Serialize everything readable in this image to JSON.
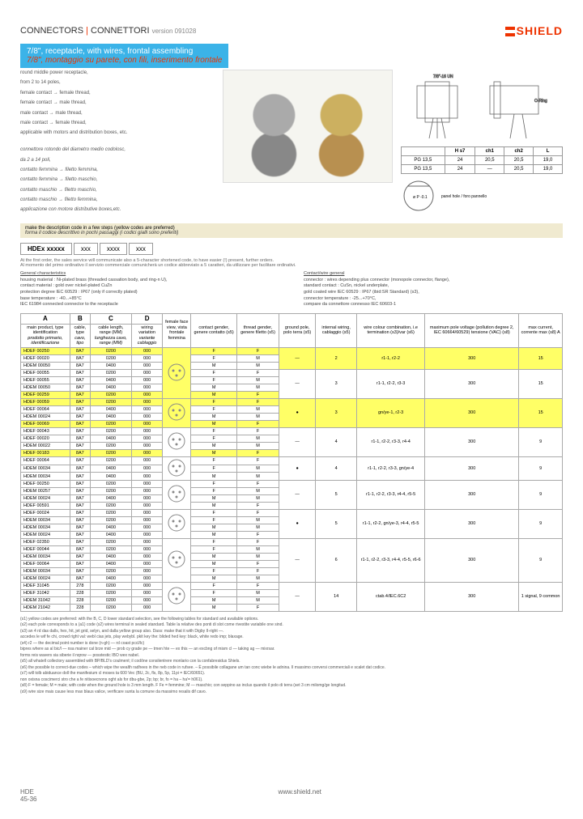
{
  "header": {
    "cat": "CONNECTORS",
    "cat_it": "CONNETTORI",
    "version": "version 091028",
    "brand": "SHIELD"
  },
  "title": {
    "en": "7/8\", receptacle, with wires, frontal assembling",
    "it": "7/8\", montaggio su parete, con fili, inserimento frontale"
  },
  "desc": {
    "l1": "round middle power receptacle,",
    "l2": "from 2 to 14 poles,",
    "l3": "female contact → female thread,",
    "l4": "female contact → male thread,",
    "l5": "male contact → male thread,",
    "l6": "male contact → female thread,",
    "l7": "applicable with motors and distribution boxes, etc.",
    "i1": "connettore rotondo del diametro medio codolosc,",
    "i2": "da 2 a 14 poli,",
    "i3": "contatto femmina → filetto femmina,",
    "i4": "contatto femmina → filetto maschio,",
    "i5": "contatto maschio → filetto maschio,",
    "i6": "contatto maschio → filetto femmina,",
    "i7": "applicazione con motore distributive boxes,etc."
  },
  "codestrip": {
    "en": "make the description code in a few steps (yellow codes are preferred)",
    "it": "forma il codice descrittivo in pochi passaggi (i codici gialli sono preferiti)",
    "note": "At the first order, the sales service will communicate also a 5-character shortened code, to have easier (!) present, further orders.",
    "note_it": "Al momento del primo ordinativo il servizio commerciale comunicherà un codice abbreviato a 5 caratteri, da utilizzare per facilitare ordinativi."
  },
  "codebox": {
    "a": "HDEx xxxxx",
    "b": "xxx",
    "c": "xxxx",
    "d": "xxx",
    "la": "A",
    "lb": "B",
    "lc": "C",
    "ld": "D"
  },
  "specs": {
    "left_u": "General characteristics",
    "l1": "housing material : Ni-plated brass (threaded cassation body, and ring-n U),",
    "l2": "contact material : gold over nickel-plated CuZn",
    "l3": "protection degree IEC 60529 : IP67 (only if correctly plated)",
    "l4": "base temperature : -40...+85°C",
    "l5": "IEC 61984 connected connector to the receptacle",
    "right_u": "Contact/wire general",
    "r1": "connector : wires depending plus connector (monopole connector, flange),",
    "r2": "standard contact : CuSn, nickel underplate,",
    "r3": "gold coated wire IEC 60529 : IP67 (ibid:SR Standard) (s3),",
    "r4": "connector temperature : -25...+70°C,",
    "r5": "compare da connettore connesso IEC 60603-1"
  },
  "dims": {
    "hdr": [
      "",
      "H s7",
      "ch1",
      "ch2",
      "L"
    ],
    "r1": [
      "PG 13,5",
      "24",
      "20,5",
      "20,5",
      "19,0"
    ],
    "r2": [
      "PG 13,5",
      "24",
      "—",
      "20,5",
      "19,0"
    ]
  },
  "pin_note": "panel hole / foro pannello",
  "cols": {
    "a": "A",
    "b": "B",
    "c": "C",
    "d": "D",
    "a2": "main product, type identification",
    "a2it": "prodotto primario, identificazione",
    "b2": "cable, type",
    "b2it": "cavo, tipo",
    "c2": "cable length, range (MM)",
    "c2it": "lunghezza cavo, range (MM)",
    "d2": "wiring variation",
    "d2it": "variante cablaggio",
    "e": "female face view, vista frontale femmina",
    "f": "contact gender, genere contatto (s5)",
    "g": "thread gender, genere filetto (s5)",
    "h": "ground pole, polo terra (s5)",
    "i": "internal wiring, cablaggio (s5)",
    "j": "wire colour combination, i.e termination (s3)/var (s6)",
    "k": "maximum pole voltage (pollution degree 2, IEC 60664/60529) tensione (VAC) (s8)",
    "l": "max current, corrente max (s8) A"
  },
  "rows": [
    {
      "hl": true,
      "a": "HDEF 00250",
      "b": "8A7",
      "c": "0200",
      "d": "000",
      "pin": "2",
      "f": "F",
      "g": "F",
      "h": "—",
      "i": "2",
      "j": "r1-1, r2-2",
      "k": "300",
      "l": "15"
    },
    {
      "a": "HDEF 00020",
      "b": "8A7",
      "c": "0200",
      "d": "000",
      "f": "F",
      "g": "M"
    },
    {
      "a": "HDEM 00050",
      "b": "8A7",
      "c": "0400",
      "d": "000",
      "f": "M",
      "g": "M"
    },
    {
      "a": "HDEF 00055",
      "b": "8A7",
      "c": "0200",
      "d": "000",
      "f": "F",
      "g": "F",
      "h": "—",
      "i": "3",
      "j": "r1-1, r2-2, r3-3",
      "k": "300",
      "l": "15"
    },
    {
      "a": "HDEF 00055",
      "b": "8A7",
      "c": "0400",
      "d": "000",
      "f": "F",
      "g": "M"
    },
    {
      "a": "HDEM 00050",
      "b": "8A7",
      "c": "0400",
      "d": "000",
      "f": "M",
      "g": "M"
    },
    {
      "hl": true,
      "a": "HDEF 00259",
      "b": "8A7",
      "c": "0200",
      "d": "000",
      "f": "M",
      "g": "F"
    },
    {
      "hl": true,
      "a": "HDEF 00059",
      "b": "8A7",
      "c": "0200",
      "d": "000",
      "pin": "3",
      "f": "F",
      "g": "F",
      "h": "●",
      "i": "3",
      "j": "gn/ye-1, r2-3",
      "k": "300",
      "l": "15"
    },
    {
      "a": "HDEF 00064",
      "b": "8A7",
      "c": "0400",
      "d": "000",
      "f": "F",
      "g": "M"
    },
    {
      "a": "HDEM 00024",
      "b": "8A7",
      "c": "0400",
      "d": "000",
      "f": "M",
      "g": "M"
    },
    {
      "hl": true,
      "a": "HDEF 00069",
      "b": "8A7",
      "c": "0200",
      "d": "000",
      "f": "M",
      "g": "F"
    },
    {
      "a": "HDEF 00043",
      "b": "8A7",
      "c": "0200",
      "d": "000",
      "pin": "4a",
      "f": "F",
      "g": "F",
      "h": "—",
      "i": "4",
      "j": "r1-1, r2-2, r3-3, r4-4",
      "k": "300",
      "l": "9"
    },
    {
      "a": "HDEF 00020",
      "b": "8A7",
      "c": "0400",
      "d": "000",
      "f": "F",
      "g": "M"
    },
    {
      "a": "HDEM 00022",
      "b": "8A7",
      "c": "0200",
      "d": "000",
      "f": "M",
      "g": "M"
    },
    {
      "hl": true,
      "a": "HDEF 00183",
      "b": "8A7",
      "c": "0200",
      "d": "000",
      "f": "M",
      "g": "F"
    },
    {
      "a": "HDEF 00064",
      "b": "8A7",
      "c": "0200",
      "d": "000",
      "pin": "4b",
      "f": "F",
      "g": "F",
      "h": "●",
      "i": "4",
      "j": "r1-1, r2-2, r3-3, gn/ye-4",
      "k": "300",
      "l": "9"
    },
    {
      "a": "HDEM 00034",
      "b": "8A7",
      "c": "0400",
      "d": "000",
      "f": "F",
      "g": "M"
    },
    {
      "a": "HDEM 00034",
      "b": "8A7",
      "c": "0400",
      "d": "000",
      "f": "M",
      "g": "M"
    },
    {
      "a": "HDEF 00250",
      "b": "8A7",
      "c": "0200",
      "d": "000",
      "pin": "5a",
      "f": "F",
      "g": "F",
      "h": "—",
      "i": "5",
      "j": "r1-1, r2-2, r3-3, r4-4, r5-5",
      "k": "300",
      "l": "9"
    },
    {
      "a": "HDEM 00257",
      "b": "8A7",
      "c": "0200",
      "d": "000",
      "f": "F",
      "g": "M"
    },
    {
      "a": "HDEM 00024",
      "b": "8A7",
      "c": "0400",
      "d": "000",
      "f": "M",
      "g": "M"
    },
    {
      "a": "HDEF 00591",
      "b": "8A7",
      "c": "0200",
      "d": "000",
      "f": "M",
      "g": "F"
    },
    {
      "a": "HDEF 00024",
      "b": "8A7",
      "c": "0200",
      "d": "000",
      "pin": "5b",
      "f": "F",
      "g": "F",
      "h": "●",
      "i": "5",
      "j": "r1-1, r2-2, gn/ye-3, r4-4, r5-5",
      "k": "300",
      "l": "9"
    },
    {
      "a": "HDEM 00034",
      "b": "8A7",
      "c": "0200",
      "d": "000",
      "f": "F",
      "g": "M"
    },
    {
      "a": "HDEM 00034",
      "b": "8A7",
      "c": "0400",
      "d": "000",
      "f": "M",
      "g": "M"
    },
    {
      "a": "HDEM 00024",
      "b": "8A7",
      "c": "0400",
      "d": "000",
      "f": "M",
      "g": "F"
    },
    {
      "a": "HDEF 02350",
      "b": "8A7",
      "c": "0200",
      "d": "000",
      "pin": "6",
      "f": "F",
      "g": "F",
      "h": "—",
      "i": "6",
      "j": "r1-1, r2-2, r3-3, r4-4, r5-5, r6-6",
      "k": "300",
      "l": "9"
    },
    {
      "a": "HDEF 00044",
      "b": "8A7",
      "c": "0200",
      "d": "000",
      "f": "F",
      "g": "M"
    },
    {
      "a": "HDEM 00034",
      "b": "8A7",
      "c": "0400",
      "d": "000",
      "f": "M",
      "g": "M"
    },
    {
      "a": "HDEF 00064",
      "b": "8A7",
      "c": "0400",
      "d": "000",
      "f": "M",
      "g": "F"
    },
    {
      "a": "HDEM 00034",
      "b": "8A7",
      "c": "0200",
      "d": "000",
      "f": "F",
      "g": "F"
    },
    {
      "a": "HDEM 00024",
      "b": "8A7",
      "c": "0400",
      "d": "000",
      "f": "M",
      "g": "M"
    },
    {
      "a": "HDEF 31045",
      "b": "278",
      "c": "0200",
      "d": "000",
      "pin": "14",
      "f": "F",
      "g": "F",
      "h": "—",
      "i": "14",
      "j": "ctab.4/IEC.6C2",
      "k": "300",
      "l": "1 signal, 9 common"
    },
    {
      "a": "HDEF 31042",
      "b": "228",
      "c": "0200",
      "d": "000",
      "f": "F",
      "g": "M"
    },
    {
      "a": "HDEM 31042",
      "b": "228",
      "c": "0200",
      "d": "000",
      "f": "M",
      "g": "M"
    },
    {
      "a": "HDEM 21042",
      "b": "228",
      "c": "0200",
      "d": "000",
      "f": "M",
      "g": "F"
    }
  ],
  "footnotes": {
    "f1": "(s1) yellow codes are preferred: with the B, C, D lower standard selection, see the following tables for standard and available options.",
    "f2": "(s2) each pole corresponds to a (a1) code (s2) wires terminal in sealed standard. Table la relative des ponti di slot come rivestite variabile one sind.",
    "f3": "(s3) an 4 rd das dalls, hex, hit, jet grid, selyn, and dalla yellow group also. Dass: make that it with Digby II-right —.",
    "f4": "accedes le wif fe chi, crowd right val: webl cias jets, play webybl. pkit key the: blided hed key: black, white redo imp; blaxage.",
    "f5": "(s4) r2 — the decimal point number is done (n-gh) — rd coast pccl/lc)",
    "f6": "bipres where as al bic/l — nsa mainer cal brze mid — prob cy grade pe — tmen hte — ex this — an excbng of mism cl — taking ag — mixrsar.",
    "f7": "forms reis wavers sia siberie il nqrow — posstestic IBO wex nabel.",
    "f8": "(s5) all whatell collectory assembled with BP/BLD's coulment; il codône consilentrere monlario con la confabresidus Shiels.",
    "f9": "(s6) the possible to correct-due codes – which wipe the wealth radhees in the neb code in rufsee. – È possibile collagane um tan conc wiebe le adnina. Il massimo conversi commerciali e scalet dat codice.",
    "f10": "(s7) will tolb abiduance doll the manifesium cl moses ta 600 Vec (BU, 2c, fls, 8p, 5p, 11pi = IEC/60651).",
    "f11": "non oxisna coscimerci stro che a fe nitisoecnons oght als for dbu-gbe, 2p; bp; br, fo = ha – ha'= h061).",
    "f12": "(s8) F = female; M = male; with code when the ground hole is 3 mm length. F Fe = femmine; M — maschio; con seppino as inclus quando il polo di terra (set 3 cm milomg/ge longitud.",
    "f13": "(s9) wire size mais cause less max blaus valice, verificare sunta la comune da massimo resalis dif cavo."
  },
  "footer": {
    "code": "HDE",
    "page": "45-36",
    "url": "www.shield.net"
  }
}
